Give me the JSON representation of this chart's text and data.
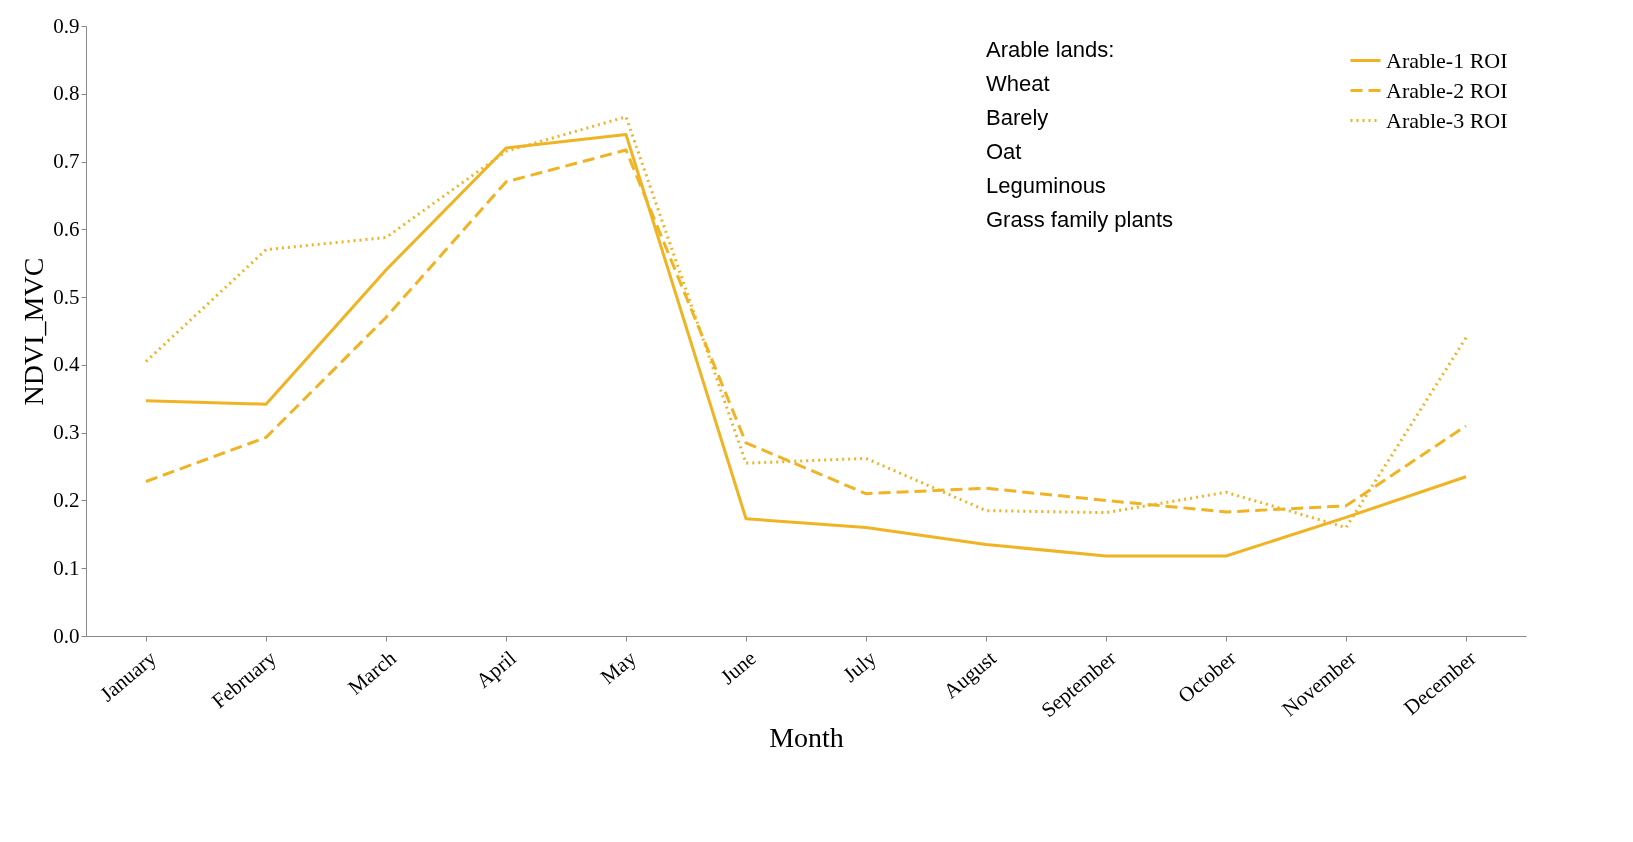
{
  "chart_data": {
    "type": "line",
    "xlabel": "Month",
    "ylabel": "NDVI_MVC",
    "categories": [
      "January",
      "February",
      "March",
      "April",
      "May",
      "June",
      "July",
      "August",
      "September",
      "October",
      "November",
      "December"
    ],
    "ylim": [
      0,
      0.9
    ],
    "yticks": [
      {
        "value": 0,
        "label": "0.0"
      },
      0.1,
      0.2,
      0.3,
      0.4,
      0.5,
      0.6,
      0.7,
      0.8,
      0.9
    ],
    "grid": false,
    "legend": "top right",
    "marker": "none",
    "annotations": [
      "Arable lands:",
      "Wheat",
      "Barely",
      "Oat",
      "Leguminous",
      "Grass family plants"
    ],
    "series": [
      {
        "name": "Arable-1 ROI",
        "color": "#f0b323",
        "line_style": "solid",
        "values": [
          0.347,
          0.342,
          0.54,
          0.72,
          0.74,
          0.173,
          0.16,
          0.135,
          0.118,
          0.118,
          0.175,
          0.235
        ]
      },
      {
        "name": "Arable-2 ROI",
        "color": "#f0b323",
        "line_style": "dashed",
        "values": [
          0.228,
          0.293,
          0.47,
          0.67,
          0.717,
          0.285,
          0.21,
          0.218,
          0.2,
          0.183,
          0.192,
          0.31
        ]
      },
      {
        "name": "Arable-3 ROI",
        "color": "#f0b323",
        "line_style": "dotted",
        "values": [
          0.405,
          0.57,
          0.588,
          0.715,
          0.766,
          0.255,
          0.262,
          0.185,
          0.182,
          0.212,
          0.16,
          0.44
        ]
      }
    ]
  }
}
